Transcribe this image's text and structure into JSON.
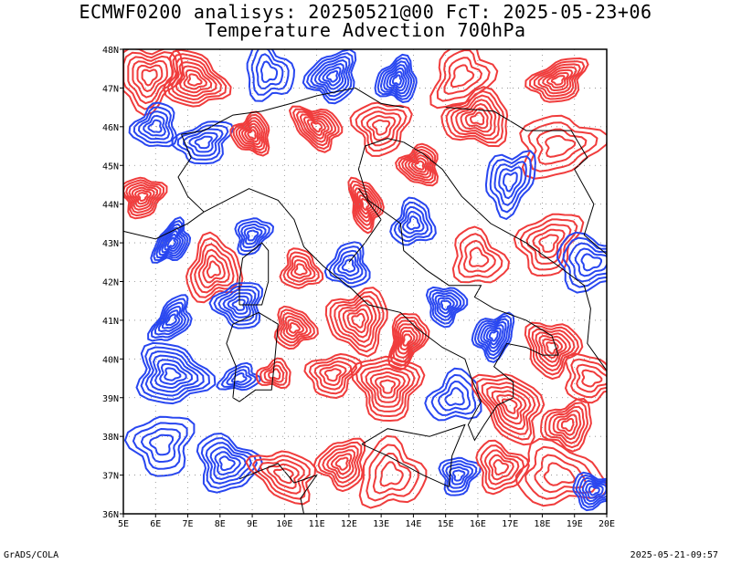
{
  "title": {
    "line1": "ECMWF0200 analisys: 20250521@00 FcT: 2025-05-23+06",
    "line2": "Temperature Advection 700hPa"
  },
  "map": {
    "lon_range": [
      5,
      20
    ],
    "lat_range": [
      36,
      48
    ],
    "lon_labels": [
      "5E",
      "6E",
      "7E",
      "8E",
      "9E",
      "10E",
      "11E",
      "12E",
      "13E",
      "14E",
      "15E",
      "16E",
      "17E",
      "18E",
      "19E",
      "20E"
    ],
    "lat_labels": [
      "36N",
      "37N",
      "38N",
      "39N",
      "40N",
      "41N",
      "42N",
      "43N",
      "44N",
      "45N",
      "46N",
      "47N",
      "48N"
    ],
    "contour_colors": {
      "warm_advection": "#f03c3c",
      "cold_advection": "#2846f0"
    },
    "frame_color": "#000000",
    "grid": "dotted"
  },
  "footer": {
    "left": "GrADS/COLA",
    "right": "2025-05-21-09:57"
  }
}
